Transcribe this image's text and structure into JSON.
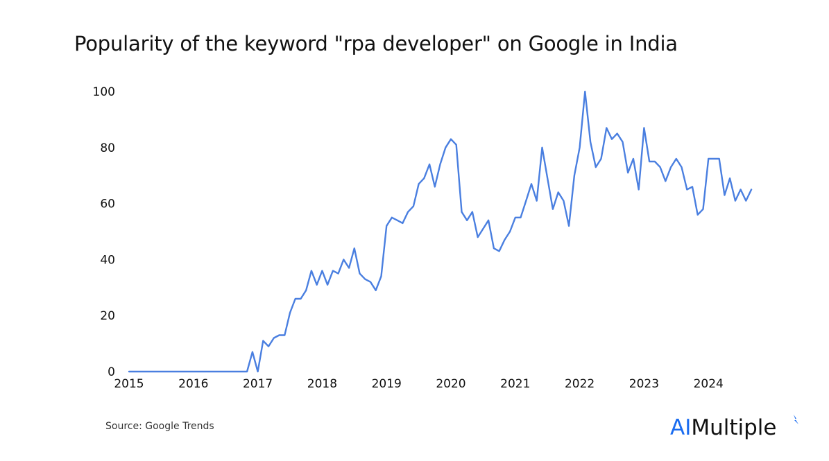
{
  "title": "Popularity of the keyword \"rpa developer\" on Google in India",
  "source": "Source: Google Trends",
  "logo": {
    "ai": "AI",
    "rest": "Multiple",
    "ai_color": "#1a6cf0"
  },
  "line_color": "#4a7fe0",
  "chart_data": {
    "type": "line",
    "title": "Popularity of the keyword \"rpa developer\" on Google in India",
    "xlabel": "",
    "ylabel": "",
    "ylim": [
      0,
      100
    ],
    "grid": false,
    "legend": null,
    "yticks": [
      0,
      20,
      40,
      60,
      80,
      100
    ],
    "xticks": [
      "2015",
      "2016",
      "2017",
      "2018",
      "2019",
      "2020",
      "2021",
      "2022",
      "2023",
      "2024"
    ],
    "x_start": "2015-01",
    "x_frequency": "monthly",
    "series": [
      {
        "name": "rpa developer",
        "values": [
          0,
          0,
          0,
          0,
          0,
          0,
          0,
          0,
          0,
          0,
          0,
          0,
          0,
          0,
          0,
          0,
          0,
          0,
          0,
          0,
          0,
          0,
          0,
          7,
          0,
          11,
          9,
          12,
          13,
          13,
          21,
          26,
          26,
          29,
          36,
          31,
          36,
          31,
          36,
          35,
          40,
          37,
          44,
          35,
          33,
          32,
          29,
          34,
          52,
          55,
          54,
          53,
          57,
          59,
          67,
          69,
          74,
          66,
          74,
          80,
          83,
          81,
          57,
          54,
          57,
          48,
          51,
          54,
          44,
          43,
          47,
          50,
          55,
          55,
          61,
          67,
          61,
          80,
          69,
          58,
          64,
          61,
          52,
          70,
          80,
          100,
          82,
          73,
          76,
          87,
          83,
          85,
          82,
          71,
          76,
          65,
          87,
          75,
          75,
          73,
          68,
          73,
          76,
          73,
          65,
          66,
          56,
          58,
          76,
          76,
          76,
          63,
          69,
          61,
          65,
          61,
          65
        ]
      }
    ]
  }
}
